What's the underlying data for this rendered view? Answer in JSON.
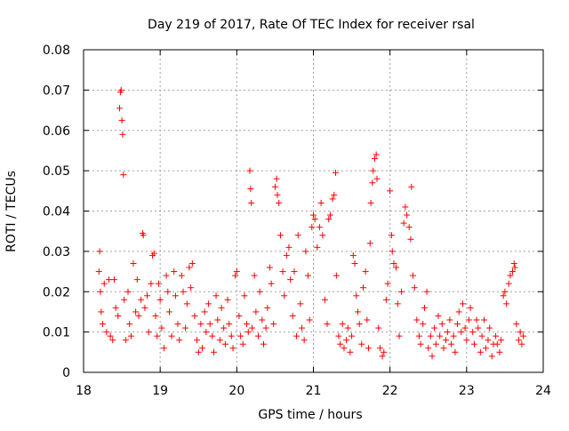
{
  "chart_data": {
    "type": "scatter",
    "title": "Day 219 of 2017, Rate Of TEC Index for receiver rsal",
    "xlabel": "GPS time / hours",
    "ylabel": "ROTI / TECUs",
    "xlim": [
      18,
      24
    ],
    "ylim": [
      0,
      0.08
    ],
    "xticks": [
      18,
      19,
      20,
      21,
      22,
      23,
      24
    ],
    "yticks": [
      0,
      0.01,
      0.02,
      0.03,
      0.04,
      0.05,
      0.06,
      0.07,
      0.08
    ],
    "xtick_labels": [
      "18",
      "19",
      "20",
      "21",
      "22",
      "23",
      "24"
    ],
    "ytick_labels": [
      "0",
      "0.01",
      "0.02",
      "0.03",
      "0.04",
      "0.05",
      "0.06",
      "0.07",
      "0.08"
    ],
    "grid": true,
    "marker": "plus",
    "color": "#ff0000",
    "series": [
      {
        "points": [
          [
            18.2,
            0.025
          ],
          [
            18.21,
            0.03
          ],
          [
            18.22,
            0.02
          ],
          [
            18.23,
            0.015
          ],
          [
            18.25,
            0.012
          ],
          [
            18.27,
            0.022
          ],
          [
            18.3,
            0.01
          ],
          [
            18.33,
            0.023
          ],
          [
            18.35,
            0.009
          ],
          [
            18.38,
            0.008
          ],
          [
            18.4,
            0.023
          ],
          [
            18.42,
            0.016
          ],
          [
            18.45,
            0.014
          ],
          [
            18.47,
            0.0655
          ],
          [
            18.48,
            0.0695
          ],
          [
            18.49,
            0.07
          ],
          [
            18.5,
            0.0625
          ],
          [
            18.51,
            0.059
          ],
          [
            18.52,
            0.049
          ],
          [
            18.53,
            0.018
          ],
          [
            18.55,
            0.008
          ],
          [
            18.58,
            0.02
          ],
          [
            18.6,
            0.012
          ],
          [
            18.62,
            0.009
          ],
          [
            18.65,
            0.027
          ],
          [
            18.68,
            0.015
          ],
          [
            18.7,
            0.023
          ],
          [
            18.72,
            0.014
          ],
          [
            18.75,
            0.018
          ],
          [
            18.77,
            0.0345
          ],
          [
            18.78,
            0.034
          ],
          [
            18.8,
            0.016
          ],
          [
            18.83,
            0.019
          ],
          [
            18.85,
            0.01
          ],
          [
            18.88,
            0.022
          ],
          [
            18.9,
            0.029
          ],
          [
            18.92,
            0.0295
          ],
          [
            18.94,
            0.014
          ],
          [
            18.96,
            0.009
          ],
          [
            18.98,
            0.022
          ],
          [
            19.0,
            0.018
          ],
          [
            19.02,
            0.011
          ],
          [
            19.05,
            0.006
          ],
          [
            19.08,
            0.024
          ],
          [
            19.1,
            0.02
          ],
          [
            19.12,
            0.015
          ],
          [
            19.15,
            0.009
          ],
          [
            19.18,
            0.025
          ],
          [
            19.2,
            0.019
          ],
          [
            19.23,
            0.012
          ],
          [
            19.25,
            0.008
          ],
          [
            19.28,
            0.024
          ],
          [
            19.3,
            0.02
          ],
          [
            19.33,
            0.011
          ],
          [
            19.35,
            0.017
          ],
          [
            19.38,
            0.026
          ],
          [
            19.4,
            0.021
          ],
          [
            19.42,
            0.027
          ],
          [
            19.45,
            0.014
          ],
          [
            19.48,
            0.008
          ],
          [
            19.5,
            0.005
          ],
          [
            19.53,
            0.012
          ],
          [
            19.55,
            0.006
          ],
          [
            19.58,
            0.015
          ],
          [
            19.6,
            0.01
          ],
          [
            19.63,
            0.017
          ],
          [
            19.65,
            0.012
          ],
          [
            19.68,
            0.009
          ],
          [
            19.7,
            0.005
          ],
          [
            19.73,
            0.019
          ],
          [
            19.75,
            0.013
          ],
          [
            19.78,
            0.008
          ],
          [
            19.8,
            0.016
          ],
          [
            19.83,
            0.011
          ],
          [
            19.85,
            0.007
          ],
          [
            19.88,
            0.018
          ],
          [
            19.9,
            0.012
          ],
          [
            19.93,
            0.009
          ],
          [
            19.95,
            0.006
          ],
          [
            19.98,
            0.024
          ],
          [
            20.0,
            0.025
          ],
          [
            20.03,
            0.014
          ],
          [
            20.05,
            0.009
          ],
          [
            20.08,
            0.007
          ],
          [
            20.1,
            0.019
          ],
          [
            20.13,
            0.012
          ],
          [
            20.15,
            0.01
          ],
          [
            20.17,
            0.05
          ],
          [
            20.18,
            0.0455
          ],
          [
            20.19,
            0.042
          ],
          [
            20.2,
            0.011
          ],
          [
            20.23,
            0.024
          ],
          [
            20.25,
            0.015
          ],
          [
            20.28,
            0.009
          ],
          [
            20.3,
            0.02
          ],
          [
            20.33,
            0.013
          ],
          [
            20.35,
            0.007
          ],
          [
            20.38,
            0.011
          ],
          [
            20.4,
            0.016
          ],
          [
            20.43,
            0.026
          ],
          [
            20.45,
            0.022
          ],
          [
            20.48,
            0.012
          ],
          [
            20.5,
            0.046
          ],
          [
            20.52,
            0.048
          ],
          [
            20.53,
            0.044
          ],
          [
            20.55,
            0.042
          ],
          [
            20.57,
            0.034
          ],
          [
            20.6,
            0.025
          ],
          [
            20.62,
            0.019
          ],
          [
            20.65,
            0.029
          ],
          [
            20.68,
            0.031
          ],
          [
            20.7,
            0.023
          ],
          [
            20.73,
            0.014
          ],
          [
            20.75,
            0.025
          ],
          [
            20.78,
            0.009
          ],
          [
            20.8,
            0.034
          ],
          [
            20.83,
            0.017
          ],
          [
            20.85,
            0.011
          ],
          [
            20.88,
            0.008
          ],
          [
            20.9,
            0.03
          ],
          [
            20.93,
            0.024
          ],
          [
            20.95,
            0.013
          ],
          [
            20.98,
            0.036
          ],
          [
            21.0,
            0.039
          ],
          [
            21.02,
            0.038
          ],
          [
            21.05,
            0.031
          ],
          [
            21.08,
            0.036
          ],
          [
            21.1,
            0.042
          ],
          [
            21.12,
            0.034
          ],
          [
            21.15,
            0.018
          ],
          [
            21.18,
            0.012
          ],
          [
            21.2,
            0.038
          ],
          [
            21.22,
            0.039
          ],
          [
            21.25,
            0.043
          ],
          [
            21.27,
            0.044
          ],
          [
            21.29,
            0.0495
          ],
          [
            21.3,
            0.024
          ],
          [
            21.33,
            0.009
          ],
          [
            21.35,
            0.007
          ],
          [
            21.38,
            0.012
          ],
          [
            21.4,
            0.006
          ],
          [
            21.43,
            0.008
          ],
          [
            21.45,
            0.011
          ],
          [
            21.48,
            0.005
          ],
          [
            21.5,
            0.009
          ],
          [
            21.52,
            0.029
          ],
          [
            21.54,
            0.027
          ],
          [
            21.56,
            0.019
          ],
          [
            21.58,
            0.015
          ],
          [
            21.6,
            0.012
          ],
          [
            21.63,
            0.007
          ],
          [
            21.65,
            0.021
          ],
          [
            21.68,
            0.025
          ],
          [
            21.7,
            0.013
          ],
          [
            21.72,
            0.006
          ],
          [
            21.74,
            0.032
          ],
          [
            21.75,
            0.042
          ],
          [
            21.77,
            0.047
          ],
          [
            21.78,
            0.05
          ],
          [
            21.8,
            0.053
          ],
          [
            21.82,
            0.054
          ],
          [
            21.83,
            0.048
          ],
          [
            21.85,
            0.011
          ],
          [
            21.87,
            0.006
          ],
          [
            21.9,
            0.004
          ],
          [
            21.92,
            0.005
          ],
          [
            21.95,
            0.018
          ],
          [
            21.97,
            0.022
          ],
          [
            22.0,
            0.045
          ],
          [
            22.02,
            0.034
          ],
          [
            22.03,
            0.03
          ],
          [
            22.05,
            0.027
          ],
          [
            22.08,
            0.026
          ],
          [
            22.1,
            0.017
          ],
          [
            22.12,
            0.009
          ],
          [
            22.15,
            0.02
          ],
          [
            22.18,
            0.037
          ],
          [
            22.2,
            0.041
          ],
          [
            22.22,
            0.039
          ],
          [
            22.25,
            0.036
          ],
          [
            22.27,
            0.033
          ],
          [
            22.28,
            0.046
          ],
          [
            22.3,
            0.024
          ],
          [
            22.32,
            0.021
          ],
          [
            22.35,
            0.013
          ],
          [
            22.38,
            0.009
          ],
          [
            22.4,
            0.007
          ],
          [
            22.43,
            0.012
          ],
          [
            22.45,
            0.016
          ],
          [
            22.48,
            0.02
          ],
          [
            22.5,
            0.006
          ],
          [
            22.53,
            0.009
          ],
          [
            22.55,
            0.004
          ],
          [
            22.58,
            0.011
          ],
          [
            22.6,
            0.007
          ],
          [
            22.63,
            0.014
          ],
          [
            22.65,
            0.009
          ],
          [
            22.68,
            0.012
          ],
          [
            22.7,
            0.006
          ],
          [
            22.73,
            0.008
          ],
          [
            22.75,
            0.01
          ],
          [
            22.78,
            0.013
          ],
          [
            22.8,
            0.007
          ],
          [
            22.83,
            0.009
          ],
          [
            22.85,
            0.005
          ],
          [
            22.88,
            0.012
          ],
          [
            22.9,
            0.015
          ],
          [
            22.93,
            0.01
          ],
          [
            22.95,
            0.017
          ],
          [
            22.98,
            0.011
          ],
          [
            23.0,
            0.008
          ],
          [
            23.03,
            0.013
          ],
          [
            23.05,
            0.016
          ],
          [
            23.08,
            0.01
          ],
          [
            23.1,
            0.007
          ],
          [
            23.13,
            0.013
          ],
          [
            23.15,
            0.011
          ],
          [
            23.18,
            0.005
          ],
          [
            23.2,
            0.009
          ],
          [
            23.23,
            0.013
          ],
          [
            23.25,
            0.006
          ],
          [
            23.28,
            0.008
          ],
          [
            23.3,
            0.011
          ],
          [
            23.33,
            0.004
          ],
          [
            23.35,
            0.007
          ],
          [
            23.38,
            0.009
          ],
          [
            23.4,
            0.007
          ],
          [
            23.43,
            0.005
          ],
          [
            23.45,
            0.008
          ],
          [
            23.48,
            0.019
          ],
          [
            23.5,
            0.02
          ],
          [
            23.52,
            0.017
          ],
          [
            23.55,
            0.022
          ],
          [
            23.57,
            0.024
          ],
          [
            23.6,
            0.025
          ],
          [
            23.62,
            0.027
          ],
          [
            23.63,
            0.026
          ],
          [
            23.65,
            0.012
          ],
          [
            23.68,
            0.008
          ],
          [
            23.7,
            0.01
          ],
          [
            23.72,
            0.007
          ],
          [
            23.74,
            0.009
          ]
        ]
      }
    ]
  }
}
